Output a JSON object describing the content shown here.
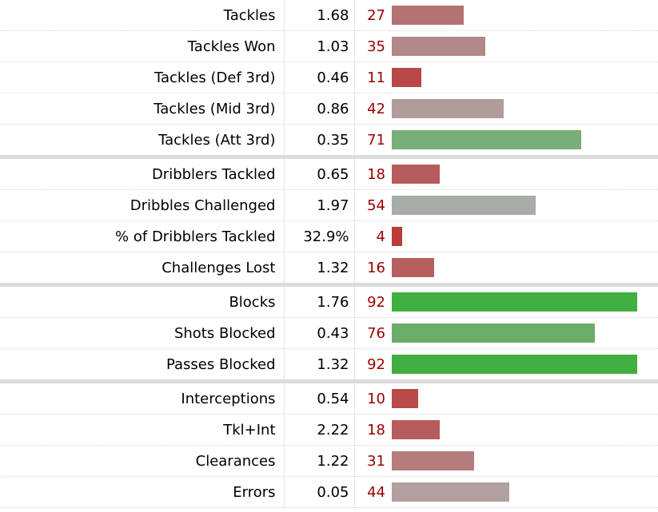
{
  "groups": [
    {
      "rows": [
        {
          "label": "Tackles",
          "value": "1.68",
          "percentile": 27,
          "bar_color": "#b27272"
        },
        {
          "label": "Tackles Won",
          "value": "1.03",
          "percentile": 35,
          "bar_color": "#b38888"
        },
        {
          "label": "Tackles (Def 3rd)",
          "value": "0.46",
          "percentile": 11,
          "bar_color": "#b84848"
        },
        {
          "label": "Tackles (Mid 3rd)",
          "value": "0.86",
          "percentile": 42,
          "bar_color": "#b29b9b"
        },
        {
          "label": "Tackles (Att 3rd)",
          "value": "0.35",
          "percentile": 71,
          "bar_color": "#79ae79"
        }
      ]
    },
    {
      "rows": [
        {
          "label": "Dribblers Tackled",
          "value": "0.65",
          "percentile": 18,
          "bar_color": "#b65c5c"
        },
        {
          "label": "Dribbles Challenged",
          "value": "1.97",
          "percentile": 54,
          "bar_color": "#a5ad a5"
        },
        {
          "label": "% of Dribblers Tackled",
          "value": "32.9%",
          "percentile": 4,
          "bar_color": "#bb3a3a"
        },
        {
          "label": "Challenges Lost",
          "value": "1.32",
          "percentile": 16,
          "bar_color": "#b75f5f"
        }
      ]
    },
    {
      "rows": [
        {
          "label": "Blocks",
          "value": "1.76",
          "percentile": 92,
          "bar_color": "#40ae40"
        },
        {
          "label": "Shots Blocked",
          "value": "0.43",
          "percentile": 76,
          "bar_color": "#6cad6c"
        },
        {
          "label": "Passes Blocked",
          "value": "1.32",
          "percentile": 92,
          "bar_color": "#40ae40"
        }
      ]
    },
    {
      "rows": [
        {
          "label": "Interceptions",
          "value": "0.54",
          "percentile": 10,
          "bar_color": "#b94a4a"
        },
        {
          "label": "Tkl+Int",
          "value": "2.22",
          "percentile": 18,
          "bar_color": "#b65c5c"
        },
        {
          "label": "Clearances",
          "value": "1.22",
          "percentile": 31,
          "bar_color": "#b47c7c"
        },
        {
          "label": "Errors",
          "value": "0.05",
          "percentile": 44,
          "bar_color": "#b1a0a0"
        }
      ]
    }
  ],
  "bar_max_percentile": 100
}
